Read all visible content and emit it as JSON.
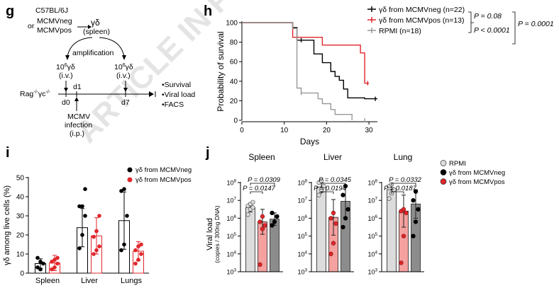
{
  "watermark": "ARTICLE IN PRESS",
  "panels": {
    "g": {
      "letter": "g",
      "donor": [
        "C57BL/6J",
        "MCMVneg",
        "MCMVpos"
      ],
      "or_label": "or",
      "gd_cells": "γδ",
      "spleen": "(spleen)",
      "amplification": "amplification",
      "dose": "10",
      "dose_exp": "6",
      "route_iv": "(i.v.)",
      "recipient": "Rag",
      "recipient_sup": "-/-",
      "recipient_mid": "γc",
      "days": [
        "d0",
        "d1",
        "d7"
      ],
      "infection": [
        "MCMV",
        "infection",
        "(i.p.)"
      ],
      "readouts": [
        "•Survival",
        "•Viral load",
        "•FACS"
      ]
    },
    "h": {
      "letter": "h",
      "pvalues": [
        "P = 0.08",
        "P < 0.0001",
        "P = 0.0001"
      ]
    },
    "i": {
      "letter": "i"
    },
    "j": {
      "letter": "j"
    }
  },
  "colors": {
    "black": "#000000",
    "red": "#e0262b",
    "gray": "#999999",
    "light_red": "#f4a19f",
    "light_gray": "#dcdcdc",
    "dark_gray": "#8c8c8c"
  },
  "chart_data": [
    {
      "id": "h",
      "type": "line",
      "subtype": "kaplan-meier",
      "xlabel": "Days",
      "ylabel": "Probability of survival",
      "xlim": [
        0,
        32
      ],
      "ylim": [
        0,
        100
      ],
      "xticks": [
        0,
        10,
        20,
        30
      ],
      "yticks": [
        0,
        20,
        40,
        60,
        80,
        100
      ],
      "series": [
        {
          "name": "γδ from MCMVneg (n=22)",
          "color": "#000000",
          "steps": [
            [
              0,
              100
            ],
            [
              12,
              100
            ],
            [
              12,
              95
            ],
            [
              13,
              95
            ],
            [
              13,
              82
            ],
            [
              17,
              82
            ],
            [
              17,
              68
            ],
            [
              19,
              68
            ],
            [
              19,
              59
            ],
            [
              21,
              59
            ],
            [
              21,
              50
            ],
            [
              22,
              50
            ],
            [
              22,
              45
            ],
            [
              23,
              45
            ],
            [
              23,
              41
            ],
            [
              24,
              41
            ],
            [
              24,
              32
            ],
            [
              25,
              32
            ],
            [
              25,
              23
            ],
            [
              29,
              23
            ],
            [
              29,
              22
            ],
            [
              32,
              22
            ]
          ],
          "censor": [
            [
              14,
              82
            ],
            [
              31.5,
              22
            ]
          ]
        },
        {
          "name": "γδ from MCMVpos (n=13)",
          "color": "#e0262b",
          "steps": [
            [
              0,
              100
            ],
            [
              12,
              100
            ],
            [
              12,
              85
            ],
            [
              19,
              85
            ],
            [
              19,
              77
            ],
            [
              28,
              77
            ],
            [
              28,
              69
            ],
            [
              29,
              69
            ],
            [
              29,
              38
            ],
            [
              30,
              38
            ]
          ],
          "censor": [
            [
              13,
              85
            ],
            [
              29.7,
              38
            ]
          ]
        },
        {
          "name": "RPMI (n=18)",
          "color": "#999999",
          "steps": [
            [
              0,
              100
            ],
            [
              12,
              100
            ],
            [
              12,
              94
            ],
            [
              13,
              94
            ],
            [
              13,
              33
            ],
            [
              14,
              33
            ],
            [
              14,
              28
            ],
            [
              18,
              28
            ],
            [
              18,
              22
            ],
            [
              19,
              22
            ],
            [
              19,
              17
            ],
            [
              21,
              17
            ],
            [
              21,
              11
            ],
            [
              22,
              11
            ],
            [
              22,
              6
            ],
            [
              26,
              6
            ],
            [
              26,
              0
            ]
          ],
          "censor": [
            [
              14,
              28
            ],
            [
              29,
              0
            ]
          ]
        }
      ]
    },
    {
      "id": "i",
      "type": "bar",
      "ylabel": "γδ among live cells (%)",
      "categories": [
        "Spleen",
        "Liver",
        "Lungs"
      ],
      "ylim": [
        0,
        50
      ],
      "yticks": [
        0,
        10,
        20,
        30,
        40,
        50
      ],
      "series": [
        {
          "name": "γδ from MCMVneg",
          "color": "#000000",
          "means": [
            5,
            23.8,
            27.5
          ],
          "sds": [
            2.5,
            10,
            15
          ],
          "points": [
            [
              3,
              2,
              5,
              8,
              6
            ],
            [
              13,
              20,
              30,
              35,
              35,
              44
            ],
            [
              12,
              15,
              30,
              43,
              44
            ]
          ]
        },
        {
          "name": "γδ from MCMVpos",
          "color": "#e0262b",
          "means": [
            5.3,
            19.5,
            11.5
          ],
          "sds": [
            4,
            9.5,
            5
          ],
          "points": [
            [
              2,
              3,
              5,
              6,
              7,
              8
            ],
            [
              10,
              12,
              14,
              19,
              22,
              30
            ],
            [
              5,
              7,
              10,
              12,
              14,
              15
            ]
          ]
        }
      ]
    },
    {
      "id": "j",
      "type": "bar",
      "scale": "log",
      "ylabel": "Viral load",
      "ylabel_sub": "(copies / 300ng DNA)",
      "ylim_exp": [
        3,
        8
      ],
      "yticks": [
        "10^3",
        "10^4",
        "10^5",
        "10^6",
        "10^7",
        "10^8"
      ],
      "legend": [
        "RPMI",
        "γδ from MCMVneg",
        "γδ from MCMVpos"
      ],
      "series_colors": {
        "RPMI": "#dcdcdc",
        "γδ from MCMVneg": "#8c8c8c",
        "γδ from MCMVpos": "#f4a19f"
      },
      "groups": [
        {
          "organ": "Spleen",
          "bars": [
            {
              "name": "RPMI",
              "mean_exp": 6.6,
              "sd_exp": 0.25,
              "points_exp": [
                6.2,
                6.5,
                6.6,
                6.7,
                6.8,
                6.9
              ]
            },
            {
              "name": "γδ from MCMVpos",
              "mean_exp": 5.8,
              "sd_exp": 0.7,
              "points_exp": [
                3.4,
                5.4,
                5.6,
                5.8,
                6.1
              ]
            },
            {
              "name": "γδ from MCMVneg",
              "mean_exp": 5.95,
              "sd_exp": 0.35,
              "points_exp": [
                5.6,
                5.8,
                6.1,
                6.3
              ]
            }
          ],
          "pvalues": [
            "P = 0.0309",
            "P = 0.0147"
          ]
        },
        {
          "organ": "Liver",
          "bars": [
            {
              "name": "RPMI",
              "mean_exp": 7.75,
              "sd_exp": 0.3,
              "points_exp": [
                7.3,
                7.6,
                7.8,
                8.0,
                8.1
              ]
            },
            {
              "name": "γδ from MCMVpos",
              "mean_exp": 6.05,
              "sd_exp": 1.0,
              "points_exp": [
                4.0,
                4.6,
                5.7,
                6.0,
                6.3
              ]
            },
            {
              "name": "γδ from MCMVneg",
              "mean_exp": 6.95,
              "sd_exp": 0.9,
              "points_exp": [
                5.5,
                6.0,
                6.5,
                7.3,
                7.8
              ]
            }
          ],
          "pvalues": [
            "P = 0.0345",
            "P = 0.0194"
          ]
        },
        {
          "organ": "Lung",
          "bars": [
            {
              "name": "RPMI",
              "mean_exp": 7.6,
              "sd_exp": 0.25,
              "points_exp": [
                7.1,
                7.4,
                7.6,
                7.8,
                7.9
              ]
            },
            {
              "name": "γδ from MCMVpos",
              "mean_exp": 6.4,
              "sd_exp": 0.9,
              "points_exp": [
                3.5,
                5.0,
                6.3,
                6.4,
                6.5
              ]
            },
            {
              "name": "γδ from MCMVneg",
              "mean_exp": 6.8,
              "sd_exp": 0.8,
              "points_exp": [
                5.0,
                5.8,
                6.5,
                7.0,
                7.5
              ]
            }
          ],
          "pvalues": [
            "P = 0.0332",
            "P = 0.0187"
          ]
        }
      ]
    }
  ]
}
